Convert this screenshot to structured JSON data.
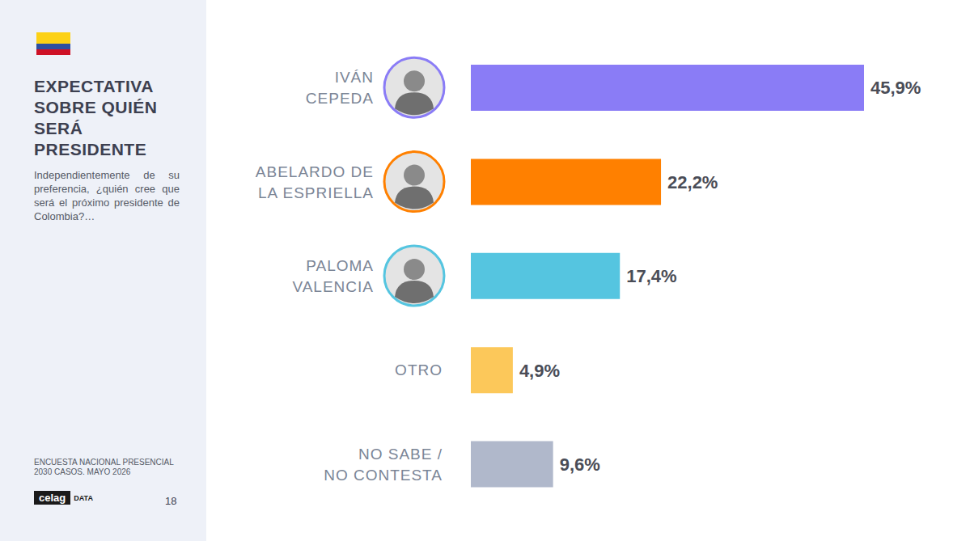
{
  "chart_data": {
    "type": "bar",
    "orientation": "horizontal",
    "title": "EXPECTATIVA SOBRE QUIÉN SERÁ PRESIDENTE",
    "subtitle": "Independientemente de su preferencia, ¿quién cree que será el próximo presidente de Colombia?…",
    "categories": [
      "IVÁN CEPEDA",
      "ABELARDO DE LA ESPRIELLA",
      "PALOMA VALENCIA",
      "OTRO",
      "NO SABE / NO CONTESTA"
    ],
    "values": [
      45.9,
      22.2,
      17.4,
      4.9,
      9.6
    ],
    "value_labels": [
      "45,9%",
      "22,2%",
      "17,4%",
      "4,9%",
      "9,6%"
    ],
    "colors": [
      "#8a7cf6",
      "#ff8000",
      "#55c5e0",
      "#fcc85a",
      "#b0b8cb"
    ],
    "data_labels": true,
    "tick_labels": "y",
    "grid": false,
    "annotations": [
      "ENCUESTA NACIONAL PRESENCIAL",
      "2030 CASOS. MAYO 2026",
      "celag",
      "DATA",
      "18"
    ]
  }
}
